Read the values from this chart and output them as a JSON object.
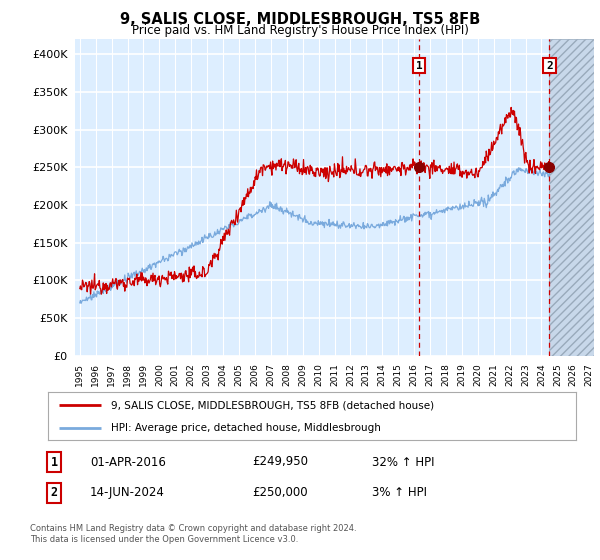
{
  "title": "9, SALIS CLOSE, MIDDLESBROUGH, TS5 8FB",
  "subtitle": "Price paid vs. HM Land Registry's House Price Index (HPI)",
  "ylim": [
    0,
    420000
  ],
  "yticks": [
    0,
    50000,
    100000,
    150000,
    200000,
    250000,
    300000,
    350000,
    400000
  ],
  "ytick_labels": [
    "£0",
    "£50K",
    "£100K",
    "£150K",
    "£200K",
    "£250K",
    "£300K",
    "£350K",
    "£400K"
  ],
  "xmin_year": 1995,
  "xmax_year": 2027,
  "xtick_years": [
    1995,
    1996,
    1997,
    1998,
    1999,
    2000,
    2001,
    2002,
    2003,
    2004,
    2005,
    2006,
    2007,
    2008,
    2009,
    2010,
    2011,
    2012,
    2013,
    2014,
    2015,
    2016,
    2017,
    2018,
    2019,
    2020,
    2021,
    2022,
    2023,
    2024,
    2025,
    2026,
    2027
  ],
  "line1_color": "#cc0000",
  "line2_color": "#7aaadd",
  "plot_bg_color": "#ddeeff",
  "grid_color": "#ffffff",
  "marker1_year": 2016.3,
  "marker1_value": 249950,
  "marker2_year": 2024.5,
  "marker2_value": 250000,
  "vline1_year": 2016.3,
  "vline2_year": 2024.5,
  "future_start_year": 2024.5,
  "legend_line1": "9, SALIS CLOSE, MIDDLESBROUGH, TS5 8FB (detached house)",
  "legend_line2": "HPI: Average price, detached house, Middlesbrough",
  "table_row1_num": "1",
  "table_row1_date": "01-APR-2016",
  "table_row1_price": "£249,950",
  "table_row1_hpi": "32% ↑ HPI",
  "table_row2_num": "2",
  "table_row2_date": "14-JUN-2024",
  "table_row2_price": "£250,000",
  "table_row2_hpi": "3% ↑ HPI",
  "footer": "Contains HM Land Registry data © Crown copyright and database right 2024.\nThis data is licensed under the Open Government Licence v3.0."
}
